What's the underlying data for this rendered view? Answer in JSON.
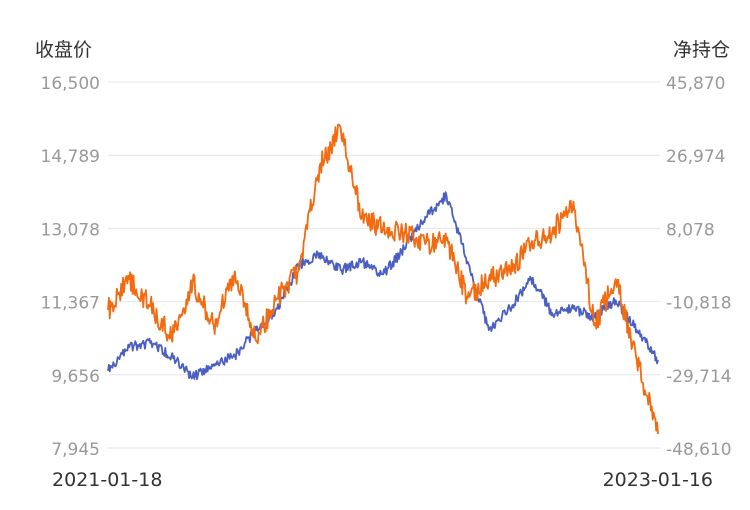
{
  "chart_data": {
    "type": "line",
    "y_left_label": "收盘价",
    "y_right_label": "净持仓",
    "x_start_label": "2021-01-18",
    "x_end_label": "2023-01-16",
    "x_range": [
      "2021-01-18",
      "2023-01-16"
    ],
    "y_left_ticks": [
      "16,500",
      "14,789",
      "13,078",
      "11,367",
      "9,656",
      "7,945"
    ],
    "y_right_ticks": [
      "45,870",
      "26,974",
      "8,078",
      "-10,818",
      "-29,714",
      "-48,610"
    ],
    "y_left_range": [
      7945,
      16500
    ],
    "y_right_range": [
      -48610,
      45870
    ],
    "grid": true,
    "series": [
      {
        "axis": "left",
        "color": "#4a5fc1",
        "x": [
          "2021-01-18",
          "2021-02-15",
          "2021-03-15",
          "2021-04-12",
          "2021-05-10",
          "2021-06-07",
          "2021-07-05",
          "2021-08-02",
          "2021-08-30",
          "2021-09-27",
          "2021-10-25",
          "2021-11-22",
          "2021-12-20",
          "2022-01-17",
          "2022-02-14",
          "2022-03-14",
          "2022-04-11",
          "2022-05-09",
          "2022-06-06",
          "2022-07-04",
          "2022-08-01",
          "2022-08-29",
          "2022-09-26",
          "2022-10-24",
          "2022-11-21",
          "2022-12-19",
          "2023-01-16"
        ],
        "values": [
          9750,
          10300,
          10400,
          10100,
          9600,
          9900,
          10100,
          10700,
          11200,
          12200,
          12500,
          12100,
          12300,
          12000,
          12600,
          13350,
          13850,
          12300,
          10700,
          11200,
          11900,
          11100,
          11200,
          11000,
          11400,
          10700,
          10000
        ]
      },
      {
        "axis": "right",
        "color": "#f26b10",
        "x": [
          "2021-01-18",
          "2021-02-15",
          "2021-03-15",
          "2021-04-12",
          "2021-05-10",
          "2021-06-07",
          "2021-07-05",
          "2021-08-02",
          "2021-08-30",
          "2021-09-27",
          "2021-10-25",
          "2021-11-22",
          "2021-12-20",
          "2022-01-17",
          "2022-02-14",
          "2022-03-14",
          "2022-04-11",
          "2022-05-09",
          "2022-06-06",
          "2022-07-04",
          "2022-08-01",
          "2022-08-29",
          "2022-09-26",
          "2022-10-24",
          "2022-11-21",
          "2022-12-19",
          "2023-01-16"
        ],
        "values": [
          -13000,
          -5000,
          -12000,
          -20000,
          -6000,
          -17000,
          -3000,
          -21000,
          -10000,
          -3000,
          24000,
          34000,
          11000,
          8000,
          7000,
          4000,
          5000,
          -10000,
          -5000,
          -3000,
          4000,
          7000,
          15000,
          -17000,
          -5000,
          -26000,
          -45000
        ]
      }
    ]
  }
}
